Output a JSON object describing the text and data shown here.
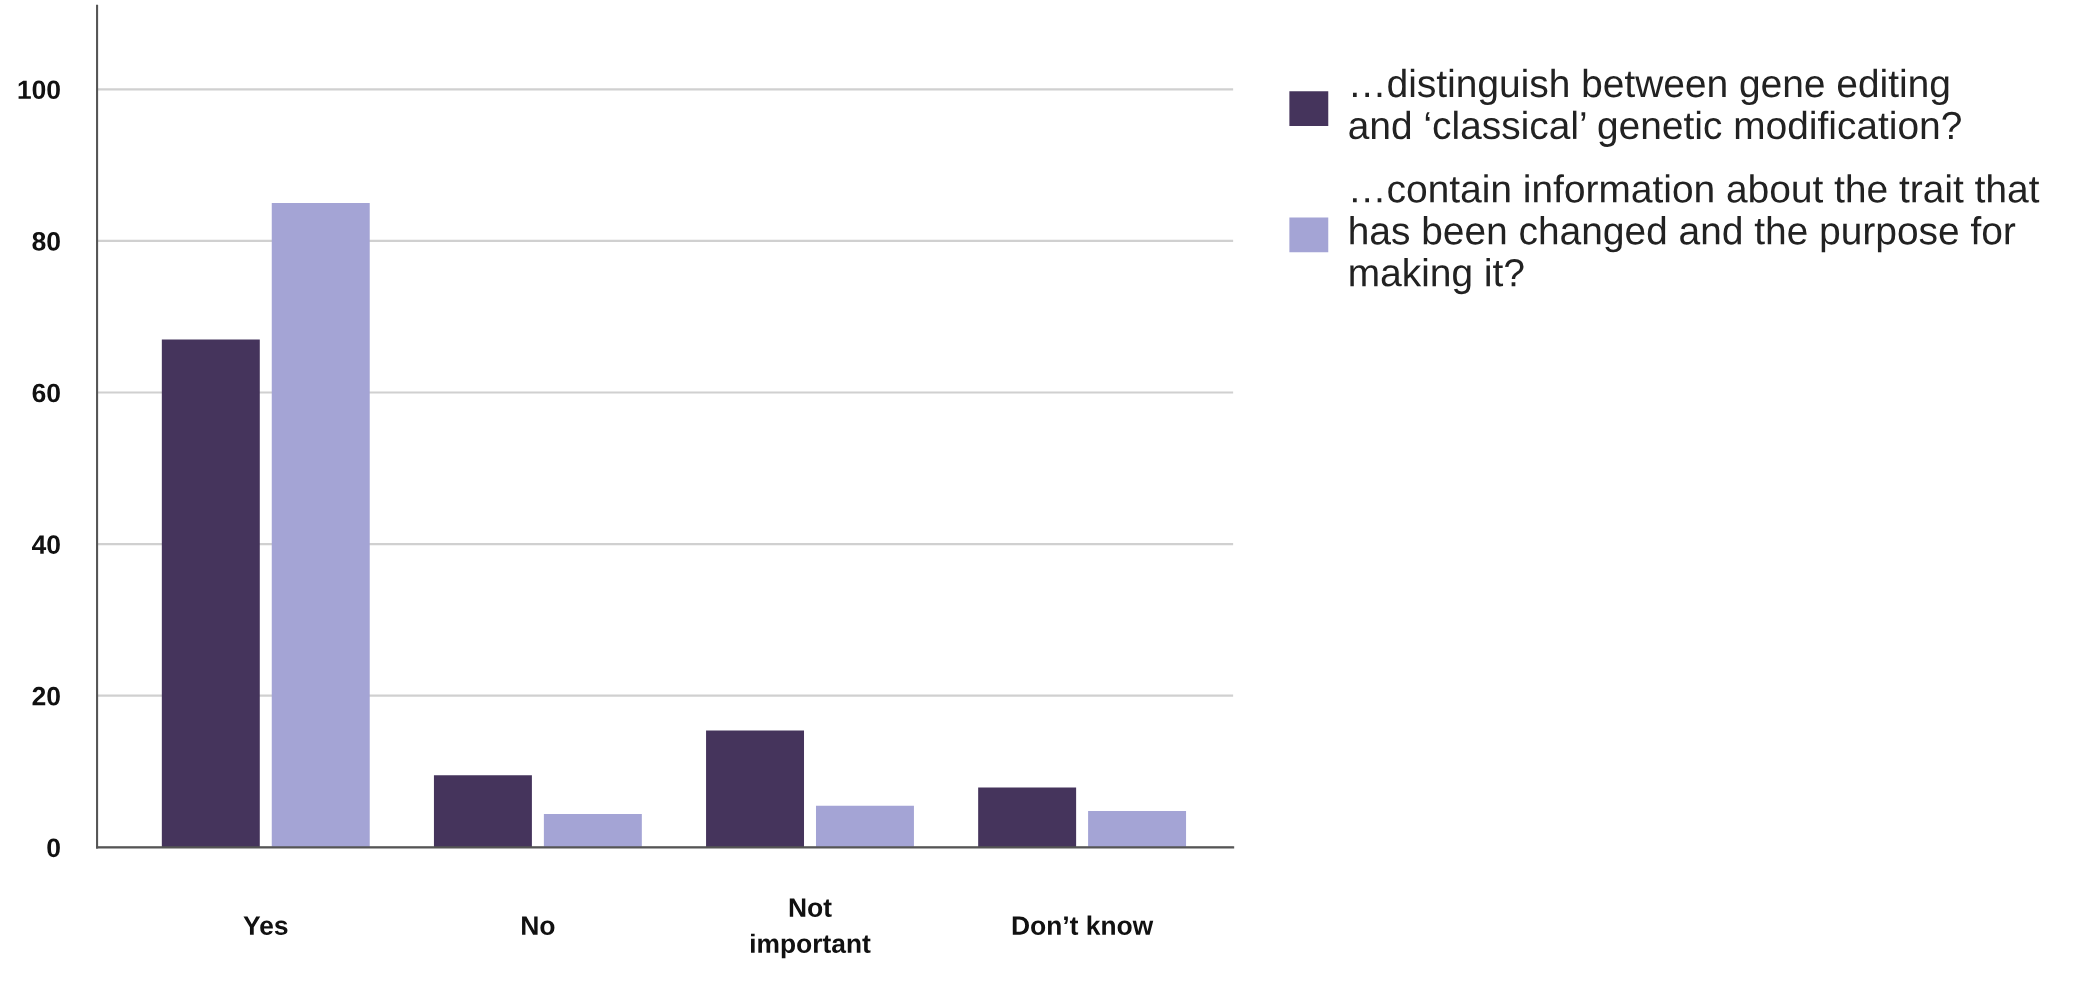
{
  "chart_data": {
    "type": "bar",
    "categories": [
      "Yes",
      "No",
      "Not\nimportant",
      "Don’t know"
    ],
    "series": [
      {
        "name": "…distinguish between gene editing\nand ‘classical’ genetic modification?",
        "color": "#45345c",
        "values": [
          67,
          9.5,
          15.4,
          7.9
        ]
      },
      {
        "name": "…contain information about the trait that\nhas been changed and the purpose for\nmaking it?",
        "color": "#a4a4d5",
        "values": [
          85,
          4.4,
          5.5,
          4.8
        ]
      }
    ],
    "ylim": [
      0,
      111
    ],
    "yticks": [
      0,
      20,
      40,
      60,
      80,
      100
    ],
    "grid": "y",
    "legend": "top right"
  }
}
